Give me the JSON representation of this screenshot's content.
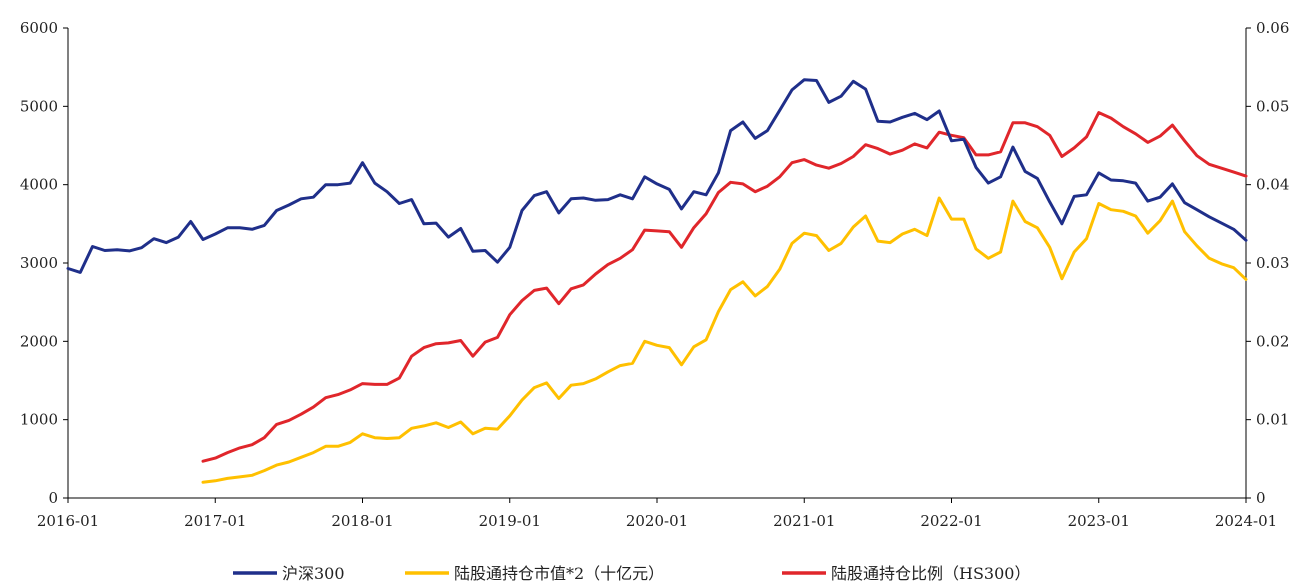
{
  "chart_data": {
    "type": "line",
    "title": "",
    "colors": {
      "hs300": "#1f2f8a",
      "holding_value": "#ffc000",
      "holding_ratio": "#e0262b",
      "axis": "#000000"
    },
    "x_ticks": [
      "2016-01",
      "2017-01",
      "2018-01",
      "2019-01",
      "2020-01",
      "2021-01",
      "2022-01",
      "2023-01",
      "2024-01"
    ],
    "y_left": {
      "min": 0,
      "max": 6000,
      "ticks": [
        0,
        1000,
        2000,
        3000,
        4000,
        5000,
        6000
      ],
      "tick_labels": [
        "0",
        "1000",
        "2000",
        "3000",
        "4000",
        "5000",
        "6000"
      ]
    },
    "y_right": {
      "min": 0,
      "max": 0.06,
      "ticks": [
        0,
        0.01,
        0.02,
        0.03,
        0.04,
        0.05,
        0.06
      ],
      "tick_labels": [
        "0",
        "0.01",
        "0.02",
        "0.03",
        "0.04",
        "0.05",
        "0.06"
      ]
    },
    "x_range": [
      0,
      96
    ],
    "series": [
      {
        "name": "沪深300",
        "axis": "left",
        "color_key": "hs300",
        "start": 0,
        "values": [
          2930,
          2880,
          3210,
          3160,
          3170,
          3155,
          3195,
          3310,
          3260,
          3330,
          3530,
          3300,
          3370,
          3450,
          3450,
          3430,
          3480,
          3670,
          3740,
          3820,
          3840,
          4000,
          4000,
          4020,
          4280,
          4020,
          3910,
          3760,
          3810,
          3500,
          3510,
          3330,
          3440,
          3150,
          3160,
          3010,
          3200,
          3670,
          3860,
          3910,
          3640,
          3820,
          3830,
          3800,
          3810,
          3870,
          3820,
          4100,
          4010,
          3940,
          3690,
          3910,
          3870,
          4150,
          4690,
          4800,
          4590,
          4690,
          4950,
          5210,
          5340,
          5330,
          5050,
          5130,
          5320,
          5220,
          4810,
          4800,
          4860,
          4910,
          4830,
          4940,
          4560,
          4580,
          4220,
          4020,
          4100,
          4480,
          4170,
          4080,
          3780,
          3500,
          3850,
          3870,
          4150,
          4060,
          4050,
          4020,
          3790,
          3840,
          4010,
          3770,
          3680,
          3590,
          3510,
          3430,
          3290
        ]
      },
      {
        "name": "陆股通持仓市值*2（十亿元）",
        "axis": "left",
        "color_key": "holding_value",
        "start": 11,
        "values": [
          200,
          220,
          250,
          270,
          290,
          350,
          420,
          460,
          520,
          580,
          660,
          660,
          710,
          820,
          770,
          760,
          770,
          890,
          920,
          960,
          900,
          970,
          820,
          890,
          880,
          1050,
          1250,
          1410,
          1470,
          1270,
          1440,
          1460,
          1520,
          1610,
          1690,
          1720,
          2000,
          1950,
          1920,
          1700,
          1930,
          2020,
          2380,
          2660,
          2760,
          2580,
          2700,
          2920,
          3250,
          3380,
          3350,
          3160,
          3250,
          3460,
          3600,
          3280,
          3260,
          3370,
          3430,
          3350,
          3830,
          3560,
          3560,
          3180,
          3060,
          3140,
          3790,
          3530,
          3450,
          3200,
          2800,
          3140,
          3310,
          3760,
          3680,
          3660,
          3600,
          3380,
          3540,
          3790,
          3400,
          3220,
          3060,
          2990,
          2940,
          2790
        ]
      },
      {
        "name": "陆股通持仓比例（HS300）",
        "axis": "right",
        "color_key": "holding_ratio",
        "start": 11,
        "values": [
          0.0047,
          0.0051,
          0.0058,
          0.0064,
          0.0068,
          0.0077,
          0.0094,
          0.0099,
          0.0107,
          0.0116,
          0.0128,
          0.0132,
          0.0138,
          0.0146,
          0.0145,
          0.0145,
          0.0153,
          0.0181,
          0.0192,
          0.0197,
          0.0198,
          0.0201,
          0.0181,
          0.0199,
          0.0205,
          0.0234,
          0.0252,
          0.0265,
          0.0268,
          0.0248,
          0.0267,
          0.0272,
          0.0286,
          0.0298,
          0.0306,
          0.0317,
          0.0342,
          0.0341,
          0.034,
          0.032,
          0.0345,
          0.0363,
          0.039,
          0.0403,
          0.0401,
          0.0391,
          0.0398,
          0.041,
          0.0428,
          0.0432,
          0.0425,
          0.0421,
          0.0427,
          0.0436,
          0.0451,
          0.0446,
          0.0439,
          0.0444,
          0.0452,
          0.0447,
          0.0467,
          0.0463,
          0.046,
          0.0438,
          0.0438,
          0.0442,
          0.0479,
          0.0479,
          0.0474,
          0.0463,
          0.0436,
          0.0447,
          0.0461,
          0.0492,
          0.0485,
          0.0474,
          0.0465,
          0.0454,
          0.0462,
          0.0476,
          0.0456,
          0.0437,
          0.0426,
          0.0421,
          0.0416,
          0.0411
        ]
      }
    ],
    "legend": {
      "position": "bottom",
      "items": [
        "沪深300",
        "陆股通持仓市值*2（十亿元）",
        "陆股通持仓比例（HS300）"
      ]
    }
  }
}
